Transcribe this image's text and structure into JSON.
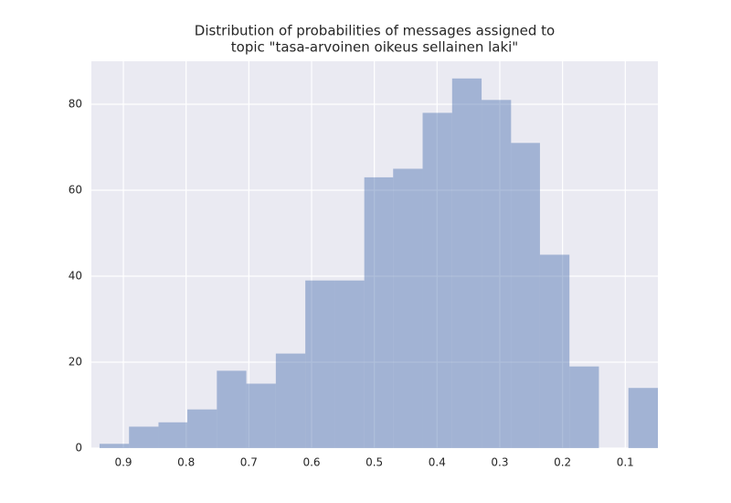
{
  "chart_data": {
    "type": "histogram",
    "title": [
      "Distribution of probabilities of messages assigned to",
      "topic \"tasa-arvoinen oikeus sellainen laki\""
    ],
    "bins": [
      0.938,
      0.891,
      0.844,
      0.798,
      0.751,
      0.704,
      0.657,
      0.61,
      0.563,
      0.516,
      0.47,
      0.423,
      0.376,
      0.329,
      0.282,
      0.236,
      0.189,
      0.142,
      0.095,
      0.048
    ],
    "values": [
      1,
      5,
      6,
      9,
      18,
      15,
      22,
      39,
      39,
      63,
      65,
      78,
      86,
      81,
      71,
      45,
      19,
      0,
      14
    ],
    "color": "#4c72b0",
    "opacity": 0.45,
    "xlim": [
      0.951,
      0.048
    ],
    "xticks": [
      0.9,
      0.8,
      0.7,
      0.6,
      0.5,
      0.4,
      0.3,
      0.2,
      0.1
    ],
    "ylim": [
      0,
      90
    ],
    "yticks": [
      0,
      20,
      40,
      60,
      80
    ],
    "grid": true,
    "background": "#eaeaf2"
  }
}
